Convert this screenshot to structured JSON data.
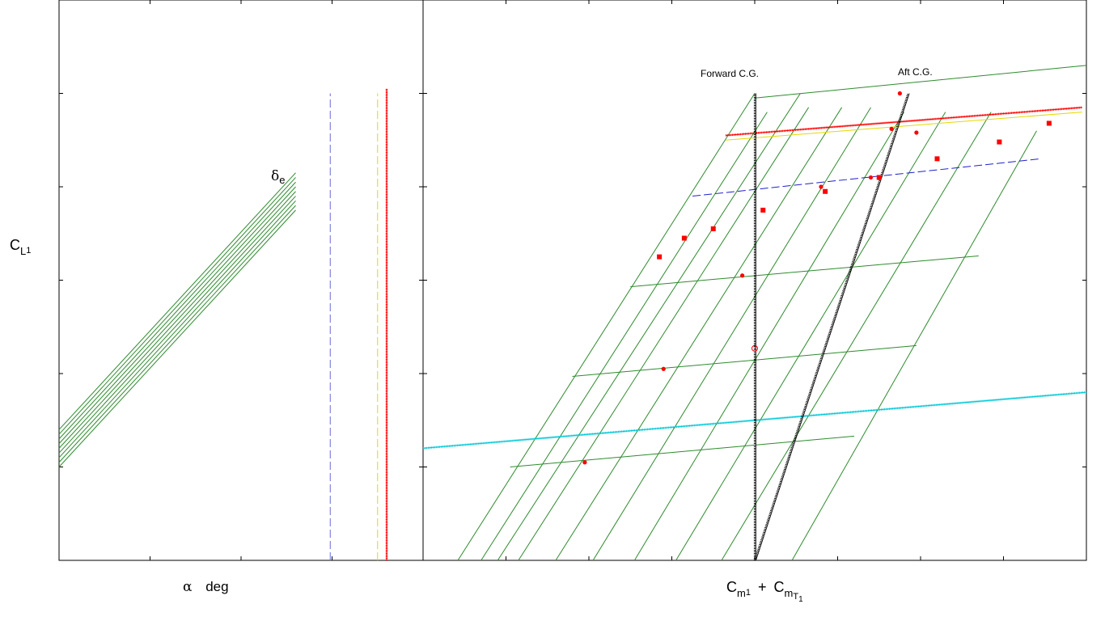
{
  "labels": {
    "y_main": "C",
    "y_sub": "L",
    "y_subsub": "1",
    "x_left_symbol": "α",
    "x_left_unit": "deg",
    "x_right_term1": "C",
    "x_right_term1_sub": "m",
    "x_right_term1_subsub": "1",
    "x_right_plus": "+",
    "x_right_term2": "C",
    "x_right_term2_sub": "m",
    "x_right_term2_subsub": "T",
    "x_right_term2_subsubsub": "1",
    "delta_symbol": "δ",
    "delta_sub": "e",
    "forward_cg": "Forward C.G.",
    "aft_cg": "Aft C.G."
  },
  "chart_data": [
    {
      "type": "line",
      "panel": "left",
      "title": "",
      "xlabel": "α deg",
      "ylabel": "CL1",
      "ticks_labeled": false,
      "xlim": [
        0,
        4
      ],
      "ylim": [
        0,
        6
      ],
      "x_ticks": [
        1,
        2,
        3
      ],
      "y_ticks": [
        1,
        2,
        3,
        4,
        5
      ],
      "series": [
        {
          "color": "#2e8b2e",
          "style": "solid",
          "points": [
            [
              0,
              1.0
            ],
            [
              2.6,
              3.75
            ]
          ]
        },
        {
          "color": "#2e8b2e",
          "style": "solid",
          "points": [
            [
              0,
              1.05
            ],
            [
              2.6,
              3.8
            ]
          ]
        },
        {
          "color": "#2e8b2e",
          "style": "solid",
          "points": [
            [
              0,
              1.1
            ],
            [
              2.6,
              3.85
            ]
          ]
        },
        {
          "color": "#2e8b2e",
          "style": "solid",
          "points": [
            [
              0,
              1.15
            ],
            [
              2.6,
              3.9
            ]
          ]
        },
        {
          "color": "#2e8b2e",
          "style": "solid",
          "points": [
            [
              0,
              1.2
            ],
            [
              2.6,
              3.95
            ]
          ]
        },
        {
          "color": "#2e8b2e",
          "style": "solid",
          "points": [
            [
              0,
              1.25
            ],
            [
              2.6,
              4.0
            ]
          ]
        },
        {
          "color": "#2e8b2e",
          "style": "solid",
          "points": [
            [
              0,
              1.3
            ],
            [
              2.6,
              4.05
            ]
          ]
        },
        {
          "color": "#2e8b2e",
          "style": "solid",
          "points": [
            [
              0,
              1.35
            ],
            [
              2.6,
              4.1
            ]
          ]
        },
        {
          "color": "#2e8b2e",
          "style": "solid",
          "points": [
            [
              0,
              1.4
            ],
            [
              2.6,
              4.15
            ]
          ]
        },
        {
          "color": "#6a6ad8",
          "style": "dashed",
          "points": [
            [
              2.98,
              0
            ],
            [
              2.98,
              5.0
            ]
          ]
        },
        {
          "color": "#e6d800",
          "style": "dashed",
          "points": [
            [
              3.5,
              0
            ],
            [
              3.5,
              5.0
            ]
          ]
        },
        {
          "color": "#ff0000",
          "style": "hatched",
          "points": [
            [
              3.6,
              0
            ],
            [
              3.6,
              5.05
            ]
          ]
        }
      ]
    },
    {
      "type": "line",
      "panel": "right",
      "title": "",
      "xlabel": "Cm1 + CmT1",
      "ylabel": "",
      "ticks_labeled": false,
      "xlim": [
        0,
        8
      ],
      "ylim": [
        0,
        6
      ],
      "x_ticks": [
        1,
        2,
        3,
        4,
        5,
        6,
        7
      ],
      "y_ticks": [
        1,
        2,
        3,
        4,
        5
      ],
      "alpha_lines": [
        {
          "points": [
            [
              0.42,
              0
            ],
            [
              4.0,
              5.0
            ]
          ]
        },
        {
          "points": [
            [
              0.7,
              0
            ],
            [
              4.15,
              4.8
            ]
          ]
        },
        {
          "points": [
            [
              0.9,
              0
            ],
            [
              4.55,
              5.0
            ]
          ]
        },
        {
          "points": [
            [
              1.15,
              0
            ],
            [
              4.65,
              4.85
            ]
          ]
        },
        {
          "points": [
            [
              1.6,
              0
            ],
            [
              5.05,
              4.85
            ]
          ]
        },
        {
          "points": [
            [
              2.05,
              0
            ],
            [
              5.4,
              4.85
            ]
          ]
        },
        {
          "points": [
            [
              2.55,
              0
            ],
            [
              5.8,
              4.8
            ]
          ]
        },
        {
          "points": [
            [
              3.05,
              0
            ],
            [
              6.3,
              4.8
            ]
          ]
        },
        {
          "points": [
            [
              3.6,
              0
            ],
            [
              6.85,
              4.8
            ]
          ]
        },
        {
          "points": [
            [
              4.45,
              0
            ],
            [
              7.4,
              4.6
            ]
          ]
        }
      ],
      "cl_lines": [
        {
          "points": [
            [
              1.05,
              1.0
            ],
            [
              5.2,
              1.33
            ]
          ]
        },
        {
          "points": [
            [
              1.8,
              1.97
            ],
            [
              5.95,
              2.3
            ]
          ]
        },
        {
          "points": [
            [
              2.5,
              2.93
            ],
            [
              6.7,
              3.26
            ]
          ]
        },
        {
          "points": [
            [
              4.0,
              4.95
            ],
            [
              8.0,
              5.3
            ]
          ]
        }
      ],
      "horizontal_tails": [
        {
          "color": "#00c8d8",
          "style": "hatched",
          "points": [
            [
              0,
              1.2
            ],
            [
              8.0,
              1.8
            ]
          ]
        },
        {
          "color": "#ff0000",
          "style": "hatched",
          "points": [
            [
              3.65,
              4.55
            ],
            [
              7.95,
              4.85
            ]
          ]
        },
        {
          "color": "#e6d800",
          "style": "solid",
          "points": [
            [
              3.65,
              4.5
            ],
            [
              7.95,
              4.8
            ]
          ]
        },
        {
          "color": "#2020c8",
          "style": "dashed",
          "points": [
            [
              3.25,
              3.9
            ],
            [
              7.45,
              4.3
            ]
          ]
        }
      ],
      "cg_lines": [
        {
          "name": "Forward C.G.",
          "points": [
            [
              4.0,
              0
            ],
            [
              4.0,
              5.0
            ]
          ]
        },
        {
          "name": "Aft C.G.",
          "points": [
            [
              4.0,
              0
            ],
            [
              5.85,
              5.0
            ]
          ]
        }
      ],
      "markers_circle": [
        [
          1.95,
          1.05
        ],
        [
          2.9,
          2.05
        ],
        [
          3.85,
          3.05
        ],
        [
          4.8,
          4.0
        ],
        [
          5.4,
          4.1
        ],
        [
          5.65,
          4.62
        ],
        [
          5.95,
          4.58
        ],
        [
          5.75,
          5.0
        ]
      ],
      "markers_square": [
        [
          2.85,
          3.25
        ],
        [
          3.15,
          3.45
        ],
        [
          3.5,
          3.55
        ],
        [
          4.1,
          3.75
        ],
        [
          4.85,
          3.95
        ],
        [
          5.5,
          4.1
        ],
        [
          6.2,
          4.3
        ],
        [
          6.95,
          4.48
        ],
        [
          7.55,
          4.68
        ]
      ],
      "open_marker": [
        [
          4.0,
          2.27
        ]
      ]
    }
  ]
}
